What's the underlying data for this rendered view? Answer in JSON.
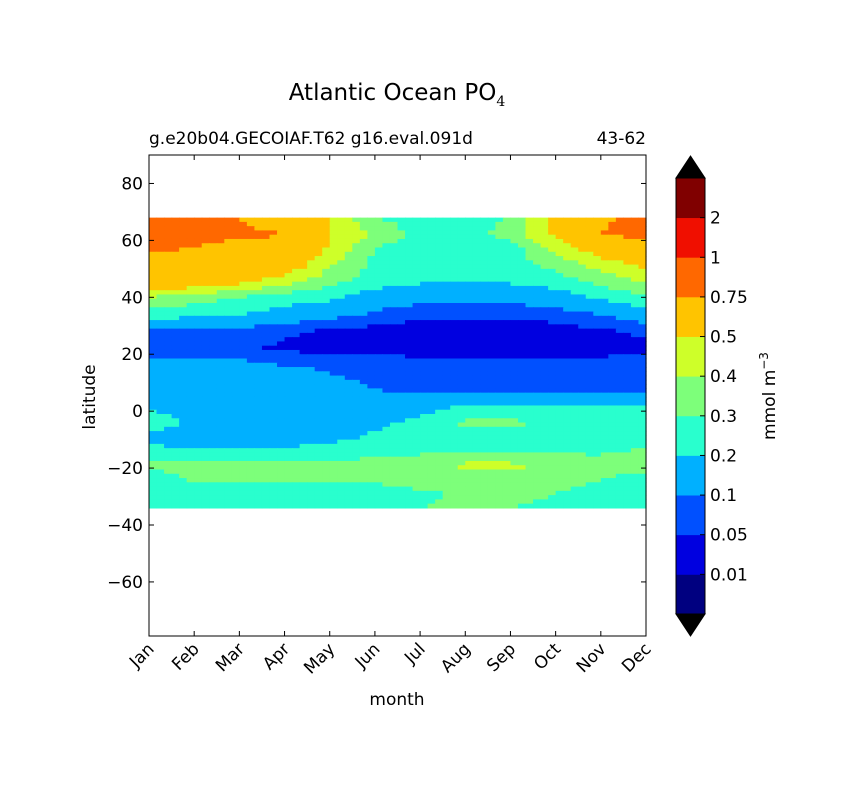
{
  "chart_data": {
    "type": "heatmap",
    "title": "Atlantic Ocean PO",
    "title_subscript": "4",
    "subtitle_left": "g.e20b04.GECOIAF.T62 g16.eval.091d",
    "subtitle_right": "43-62",
    "xlabel": "month",
    "ylabel": "latitude",
    "x_ticks": [
      "Jan",
      "Feb",
      "Mar",
      "Apr",
      "May",
      "Jun",
      "Jul",
      "Aug",
      "Sep",
      "Oct",
      "Nov",
      "Dec"
    ],
    "xlim": [
      0,
      11
    ],
    "y_ticks": [
      80,
      60,
      40,
      20,
      0,
      -20,
      -40,
      -60
    ],
    "y_tick_labels": [
      "80",
      "60",
      "40",
      "20",
      "0",
      "−20",
      "−40",
      "−60"
    ],
    "ylim": [
      -79,
      90
    ],
    "data_lat_range": [
      -34,
      68
    ],
    "colorbar": {
      "label": "mmol m",
      "label_superscript": "−3",
      "boundaries": [
        0,
        0.01,
        0.05,
        0.1,
        0.2,
        0.3,
        0.4,
        0.5,
        0.75,
        1,
        2,
        3
      ],
      "tick_labels": [
        "0.01",
        "0.05",
        "0.1",
        "0.2",
        "0.3",
        "0.4",
        "0.5",
        "0.75",
        "1",
        "2"
      ],
      "colors": [
        "#000080",
        "#0000e0",
        "#0050ff",
        "#00b0ff",
        "#29ffce",
        "#7dff7a",
        "#ceff29",
        "#ffc400",
        "#ff6800",
        "#f00f00",
        "#800000"
      ],
      "extend_color": "#000000"
    },
    "lat_samples": [
      {
        "lat": 68,
        "values": [
          0.8,
          0.78,
          0.75,
          0.65,
          0.5,
          0.3,
          0.25,
          0.25,
          0.3,
          0.55,
          0.72,
          0.8
        ]
      },
      {
        "lat": 62,
        "values": [
          0.85,
          0.8,
          0.78,
          0.76,
          0.5,
          0.4,
          0.25,
          0.25,
          0.35,
          0.52,
          0.76,
          0.8
        ]
      },
      {
        "lat": 58,
        "values": [
          0.8,
          0.76,
          0.7,
          0.65,
          0.5,
          0.3,
          0.25,
          0.25,
          0.25,
          0.45,
          0.6,
          0.68
        ]
      },
      {
        "lat": 52,
        "values": [
          0.68,
          0.66,
          0.62,
          0.6,
          0.42,
          0.28,
          0.25,
          0.22,
          0.25,
          0.35,
          0.45,
          0.55
        ]
      },
      {
        "lat": 46,
        "values": [
          0.65,
          0.62,
          0.55,
          0.45,
          0.35,
          0.25,
          0.22,
          0.22,
          0.22,
          0.25,
          0.35,
          0.42
        ]
      },
      {
        "lat": 40,
        "values": [
          0.4,
          0.35,
          0.3,
          0.25,
          0.22,
          0.15,
          0.12,
          0.12,
          0.12,
          0.15,
          0.22,
          0.28
        ]
      },
      {
        "lat": 34,
        "values": [
          0.25,
          0.22,
          0.2,
          0.15,
          0.12,
          0.09,
          0.06,
          0.06,
          0.06,
          0.07,
          0.1,
          0.15
        ]
      },
      {
        "lat": 28,
        "values": [
          0.09,
          0.08,
          0.07,
          0.06,
          0.04,
          0.03,
          0.02,
          0.02,
          0.02,
          0.03,
          0.04,
          0.06
        ]
      },
      {
        "lat": 22,
        "values": [
          0.06,
          0.06,
          0.06,
          0.04,
          0.03,
          0.03,
          0.03,
          0.03,
          0.03,
          0.03,
          0.03,
          0.04
        ]
      },
      {
        "lat": 16,
        "values": [
          0.12,
          0.12,
          0.12,
          0.1,
          0.09,
          0.08,
          0.07,
          0.07,
          0.07,
          0.07,
          0.07,
          0.08
        ]
      },
      {
        "lat": 8,
        "values": [
          0.15,
          0.15,
          0.15,
          0.15,
          0.12,
          0.1,
          0.08,
          0.08,
          0.08,
          0.08,
          0.08,
          0.08
        ]
      },
      {
        "lat": 2,
        "values": [
          0.18,
          0.15,
          0.15,
          0.15,
          0.15,
          0.12,
          0.15,
          0.2,
          0.2,
          0.2,
          0.2,
          0.2
        ]
      },
      {
        "lat": -4,
        "values": [
          0.25,
          0.18,
          0.15,
          0.15,
          0.15,
          0.18,
          0.22,
          0.32,
          0.32,
          0.28,
          0.25,
          0.25
        ]
      },
      {
        "lat": -10,
        "values": [
          0.15,
          0.15,
          0.15,
          0.15,
          0.18,
          0.22,
          0.25,
          0.25,
          0.25,
          0.25,
          0.25,
          0.25
        ]
      },
      {
        "lat": -14,
        "values": [
          0.25,
          0.22,
          0.22,
          0.22,
          0.25,
          0.25,
          0.28,
          0.3,
          0.3,
          0.28,
          0.28,
          0.32
        ]
      },
      {
        "lat": -19,
        "values": [
          0.32,
          0.32,
          0.32,
          0.32,
          0.32,
          0.35,
          0.35,
          0.42,
          0.42,
          0.38,
          0.35,
          0.35
        ]
      },
      {
        "lat": -24,
        "values": [
          0.25,
          0.32,
          0.32,
          0.32,
          0.32,
          0.32,
          0.35,
          0.35,
          0.35,
          0.35,
          0.3,
          0.25
        ]
      },
      {
        "lat": -29,
        "values": [
          0.25,
          0.25,
          0.25,
          0.25,
          0.25,
          0.25,
          0.28,
          0.32,
          0.32,
          0.3,
          0.25,
          0.25
        ]
      },
      {
        "lat": -34,
        "values": [
          0.25,
          0.25,
          0.25,
          0.25,
          0.25,
          0.28,
          0.3,
          0.32,
          0.3,
          0.28,
          0.25,
          0.25
        ]
      }
    ]
  }
}
